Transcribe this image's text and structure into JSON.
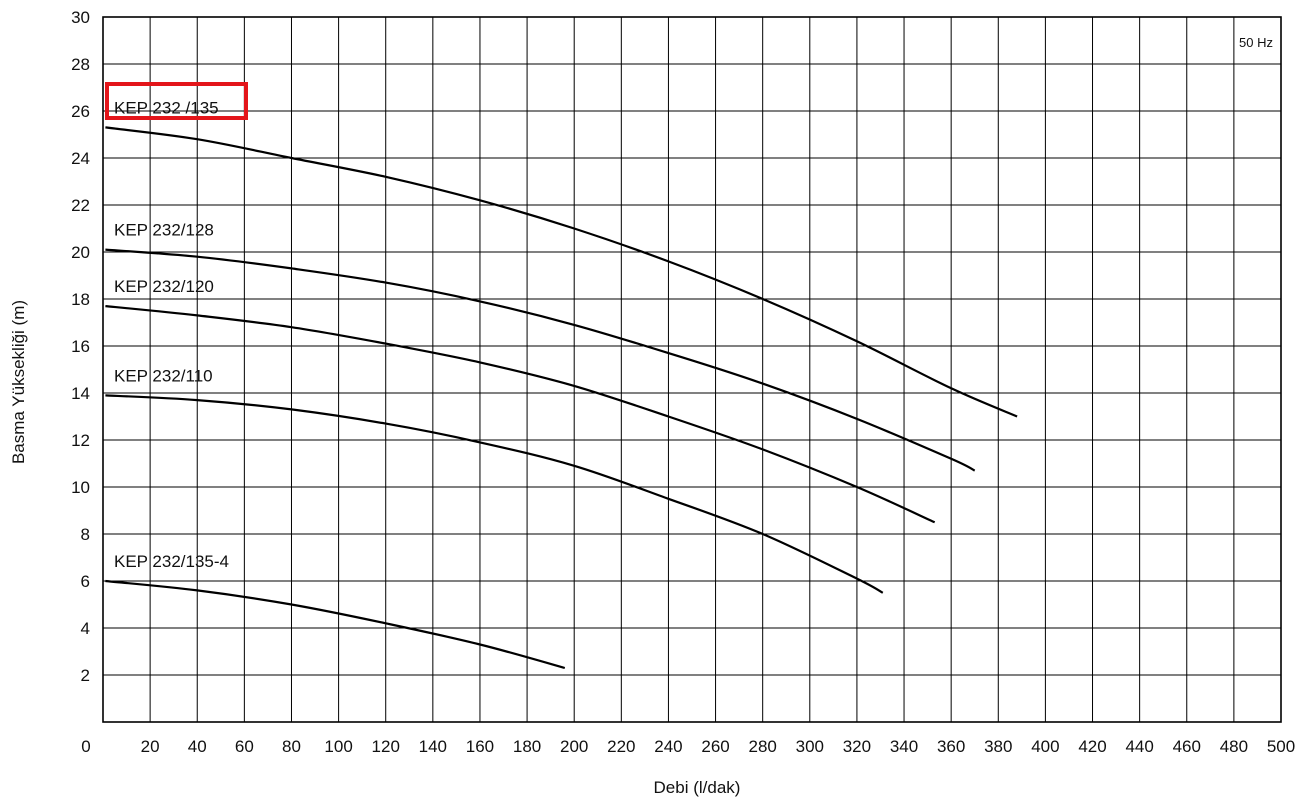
{
  "chart_data": {
    "type": "line",
    "title": "",
    "xlabel": "Debi (l/dak)",
    "ylabel": "Basma Yüksekliği (m)",
    "frequency_note": "50 Hz",
    "xlim": [
      0,
      500
    ],
    "ylim": [
      0,
      30
    ],
    "x_ticks": [
      0,
      20,
      40,
      60,
      80,
      100,
      120,
      140,
      160,
      180,
      200,
      220,
      240,
      260,
      280,
      300,
      320,
      340,
      360,
      380,
      400,
      420,
      440,
      460,
      480,
      500
    ],
    "y_ticks": [
      2,
      4,
      6,
      8,
      10,
      12,
      14,
      16,
      18,
      20,
      22,
      24,
      26,
      28,
      30
    ],
    "grid": true,
    "highlighted_series": "KEP 232 /135",
    "colors": {
      "line": "#000000",
      "grid": "#000000",
      "highlight": "#e3151a"
    },
    "series": [
      {
        "name": "KEP 232 /135",
        "x": [
          1,
          40,
          80,
          120,
          160,
          200,
          240,
          280,
          320,
          360,
          388
        ],
        "y": [
          25.3,
          24.8,
          24.0,
          23.2,
          22.2,
          21.0,
          19.6,
          18.0,
          16.2,
          14.2,
          13.0
        ]
      },
      {
        "name": "KEP 232/128",
        "x": [
          1,
          40,
          80,
          120,
          160,
          200,
          240,
          280,
          320,
          360,
          370
        ],
        "y": [
          20.1,
          19.8,
          19.3,
          18.7,
          17.9,
          16.9,
          15.7,
          14.4,
          12.9,
          11.2,
          10.7
        ]
      },
      {
        "name": "KEP 232/120",
        "x": [
          1,
          40,
          80,
          120,
          160,
          200,
          240,
          280,
          320,
          353
        ],
        "y": [
          17.7,
          17.3,
          16.8,
          16.1,
          15.3,
          14.3,
          13.0,
          11.6,
          10.0,
          8.5
        ]
      },
      {
        "name": "KEP 232/110",
        "x": [
          1,
          40,
          80,
          120,
          160,
          200,
          240,
          280,
          320,
          331
        ],
        "y": [
          13.9,
          13.7,
          13.3,
          12.7,
          11.9,
          10.9,
          9.5,
          8.0,
          6.1,
          5.5
        ]
      },
      {
        "name": "KEP 232/135-4",
        "x": [
          1,
          40,
          80,
          120,
          160,
          196
        ],
        "y": [
          6.0,
          5.6,
          5.0,
          4.2,
          3.3,
          2.3
        ]
      }
    ]
  }
}
